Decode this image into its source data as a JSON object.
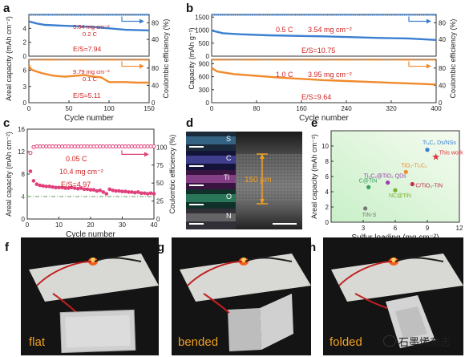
{
  "panel_labels": {
    "a": "a",
    "b": "b",
    "c": "c",
    "d": "d",
    "e": "e",
    "f": "f",
    "g": "g",
    "h": "h"
  },
  "chart_data": [
    {
      "id": "a",
      "type": "line",
      "xlabel": "Cycle number",
      "ylabel": "Areal capacity (mAh cm⁻²)",
      "y2label": "Coulombic efficiency (%)",
      "xlim": [
        0,
        150
      ],
      "xticks": [
        0,
        50,
        100,
        150
      ],
      "top": {
        "ylim": [
          0,
          6
        ],
        "yticks": [
          0,
          2,
          4
        ],
        "annot": [
          "5.04 mg cm⁻²",
          "0.2 C",
          "E/S=7.94"
        ],
        "capacity": {
          "x": [
            0,
            10,
            20,
            40,
            60,
            80,
            100,
            120,
            150
          ],
          "y": [
            5.0,
            4.7,
            4.5,
            4.4,
            4.3,
            4.2,
            4.0,
            3.8,
            3.7
          ]
        },
        "ce_level": 99,
        "y2ticks": [
          40,
          80
        ]
      },
      "bottom": {
        "ylim": [
          0,
          8
        ],
        "yticks": [
          0,
          3,
          6
        ],
        "annot": [
          "9.79 mg cm⁻²",
          "0.1 C",
          "E/S=5.11"
        ],
        "capacity": {
          "x": [
            0,
            2,
            5,
            15,
            30,
            45,
            60,
            70,
            80,
            90,
            100,
            110,
            120,
            135,
            150
          ],
          "y": [
            7.0,
            6.3,
            6.0,
            5.5,
            5.0,
            4.8,
            5.0,
            5.1,
            4.8,
            4.7,
            3.8,
            3.8,
            3.8,
            3.7,
            3.7
          ]
        },
        "ce_level": 99,
        "y2ticks": [
          0,
          40,
          80
        ]
      },
      "colors": {
        "top": "#3a7fd0",
        "bottom": "#f08a2c"
      }
    },
    {
      "id": "b",
      "type": "line",
      "xlabel": "Cycle number",
      "ylabel": "Capacity (mAh g⁻¹)",
      "y2label": "Coulombic efficiency (%)",
      "xlim": [
        0,
        400
      ],
      "xticks": [
        0,
        80,
        160,
        240,
        320,
        400
      ],
      "top": {
        "ylim": [
          0,
          1600
        ],
        "yticks": [
          0,
          500,
          1000,
          1500
        ],
        "annot": [
          "0.5 C",
          "3.54 mg cm⁻²",
          "E/S=10.75"
        ],
        "capacity": {
          "x": [
            0,
            20,
            50,
            100,
            150,
            200,
            250,
            300,
            350,
            400
          ],
          "y": [
            980,
            880,
            840,
            800,
            780,
            760,
            730,
            700,
            680,
            620
          ]
        },
        "ce_level": 99,
        "y2ticks": [
          40,
          80
        ]
      },
      "bottom": {
        "ylim": [
          0,
          1000
        ],
        "yticks": [
          0,
          300,
          600,
          900
        ],
        "annot": [
          "1.0 C",
          "3.95 mg cm⁻²",
          "E/S=9.64"
        ],
        "capacity": {
          "x": [
            0,
            10,
            40,
            80,
            120,
            160,
            200,
            240,
            280,
            320,
            360,
            400
          ],
          "y": [
            800,
            720,
            660,
            620,
            580,
            550,
            520,
            500,
            480,
            460,
            440,
            420
          ]
        },
        "ce_level": 99,
        "y2ticks": [
          0,
          40,
          80
        ]
      },
      "colors": {
        "top": "#3a7fd0",
        "bottom": "#f08a2c"
      }
    },
    {
      "id": "c",
      "type": "scatter",
      "xlabel": "Cycle number",
      "ylabel": "Areal capacity (mAh cm⁻²)",
      "y2label": "Coulombic efficiency (%)",
      "xlim": [
        0,
        40
      ],
      "ylim": [
        0,
        16
      ],
      "xticks": [
        0,
        10,
        20,
        30,
        40
      ],
      "yticks": [
        0,
        4,
        8,
        12,
        16
      ],
      "y2lim": [
        0,
        125
      ],
      "y2ticks": [
        0,
        25,
        50,
        75,
        100
      ],
      "annot": [
        "0.05 C",
        "10.4 mg cm⁻²",
        "E/S=4.97"
      ],
      "ref_line": {
        "y": 4,
        "label": "4"
      },
      "capacity": {
        "x": [
          1,
          2,
          3,
          4,
          5,
          6,
          7,
          8,
          9,
          10,
          11,
          12,
          13,
          14,
          15,
          16,
          17,
          18,
          19,
          20,
          21,
          22,
          23,
          24,
          25,
          26,
          27,
          28,
          29,
          30,
          31,
          32,
          33,
          34,
          35,
          36,
          37,
          38,
          39,
          40
        ],
        "y": [
          8.5,
          6.8,
          6.2,
          6.0,
          5.9,
          5.8,
          5.8,
          5.7,
          5.6,
          5.6,
          5.6,
          5.5,
          5.5,
          5.6,
          5.5,
          5.4,
          5.5,
          5.3,
          5.3,
          5.2,
          5.2,
          5.0,
          5.1,
          4.8,
          4.5,
          5.3,
          5.1,
          5.0,
          5.0,
          4.9,
          4.9,
          4.8,
          4.8,
          4.7,
          4.8,
          4.6,
          4.6,
          4.5,
          4.6,
          4.5
        ]
      },
      "ce": {
        "x": [
          1,
          2,
          3,
          4,
          5,
          6,
          7,
          8,
          9,
          10,
          11,
          12,
          13,
          14,
          15,
          16,
          17,
          18,
          19,
          20,
          21,
          22,
          23,
          24,
          25,
          26,
          27,
          28,
          29,
          30,
          31,
          32,
          33,
          34,
          35,
          36,
          37,
          38,
          39,
          40
        ],
        "y": [
          92,
          100,
          101,
          101,
          101,
          101,
          101,
          101,
          101,
          101,
          101,
          101,
          101,
          101,
          101,
          101,
          101,
          101,
          101,
          101,
          101,
          101,
          101,
          101,
          101,
          101,
          101,
          101,
          101,
          101,
          101,
          101,
          101,
          101,
          101,
          101,
          101,
          101,
          101,
          101
        ]
      },
      "colors": {
        "capacity": "#e0407a",
        "ce": "#e0407a",
        "ref": "#5aa050"
      }
    },
    {
      "id": "d",
      "type": "other",
      "elements": [
        "S",
        "C",
        "Ti",
        "O",
        "N"
      ],
      "thickness_label": "150 μm"
    },
    {
      "id": "e",
      "type": "scatter",
      "xlabel": "Sulfur loading (mg cm⁻²)",
      "ylabel": "Areal capacity (mAh cm⁻²)",
      "xlim": [
        0,
        12
      ],
      "ylim": [
        0,
        12
      ],
      "xticks": [
        3,
        6,
        9,
        12
      ],
      "yticks": [
        0,
        2,
        4,
        6,
        8,
        10
      ],
      "points": [
        {
          "label": "Ti₃C₂ Ds/NSs",
          "x": 9.0,
          "y": 9.5,
          "color": "#3a7fd0"
        },
        {
          "label": "This work",
          "x": 9.8,
          "y": 8.6,
          "color": "#e0303a"
        },
        {
          "label": "TiO₂-Ti₃C₂",
          "x": 7.0,
          "y": 6.6,
          "color": "#f08a2c"
        },
        {
          "label": "C/TiO₂-TiN",
          "x": 7.6,
          "y": 5.0,
          "color": "#c0304a"
        },
        {
          "label": "Ti₃C₂@TiO₂ QDs",
          "x": 5.3,
          "y": 5.2,
          "color": "#9a3fb0"
        },
        {
          "label": "C@TiN",
          "x": 3.5,
          "y": 4.6,
          "color": "#3a9f5a"
        },
        {
          "label": "NC@TiN",
          "x": 6.0,
          "y": 4.2,
          "color": "#7ab030"
        },
        {
          "label": "TiN-S",
          "x": 3.2,
          "y": 1.8,
          "color": "#777777"
        }
      ]
    }
  ],
  "photos": {
    "f": "flat",
    "g": "bended",
    "h": "folded"
  },
  "watermark": {
    "text": "石墨烯杂志"
  }
}
